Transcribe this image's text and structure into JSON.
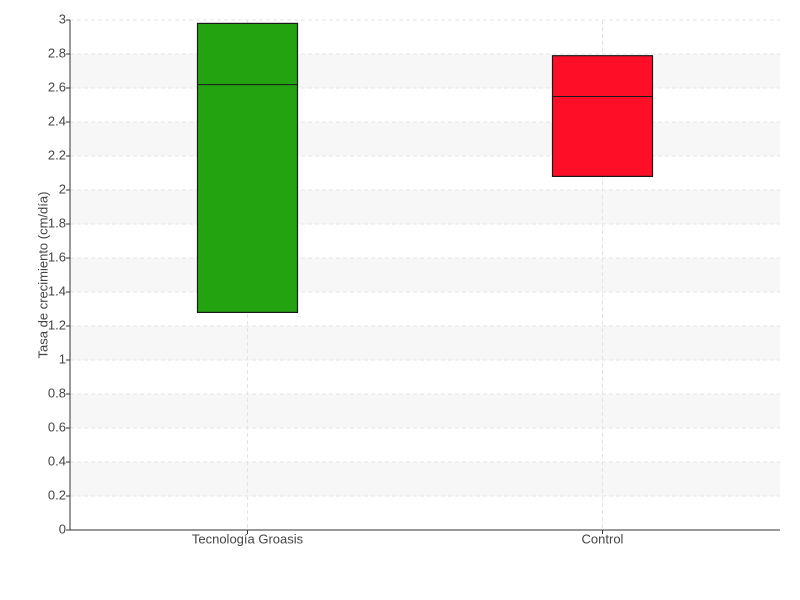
{
  "chart_data": {
    "type": "box",
    "y_label": "Tasa de crecimiento (cm/día)",
    "categories": [
      "Tecnología Groasis",
      "Control"
    ],
    "colors": [
      "#22a30f",
      "#ff0f27"
    ],
    "q1": [
      1.28,
      2.08
    ],
    "median": [
      2.62,
      2.55
    ],
    "q3": [
      2.98,
      2.79
    ],
    "ylim": [
      0,
      3
    ],
    "yticks": [
      0,
      0.2,
      0.4,
      0.6,
      0.8,
      1,
      1.2,
      1.4,
      1.6,
      1.8,
      2,
      2.2,
      2.4,
      2.6,
      2.8,
      3
    ],
    "grid": true
  }
}
